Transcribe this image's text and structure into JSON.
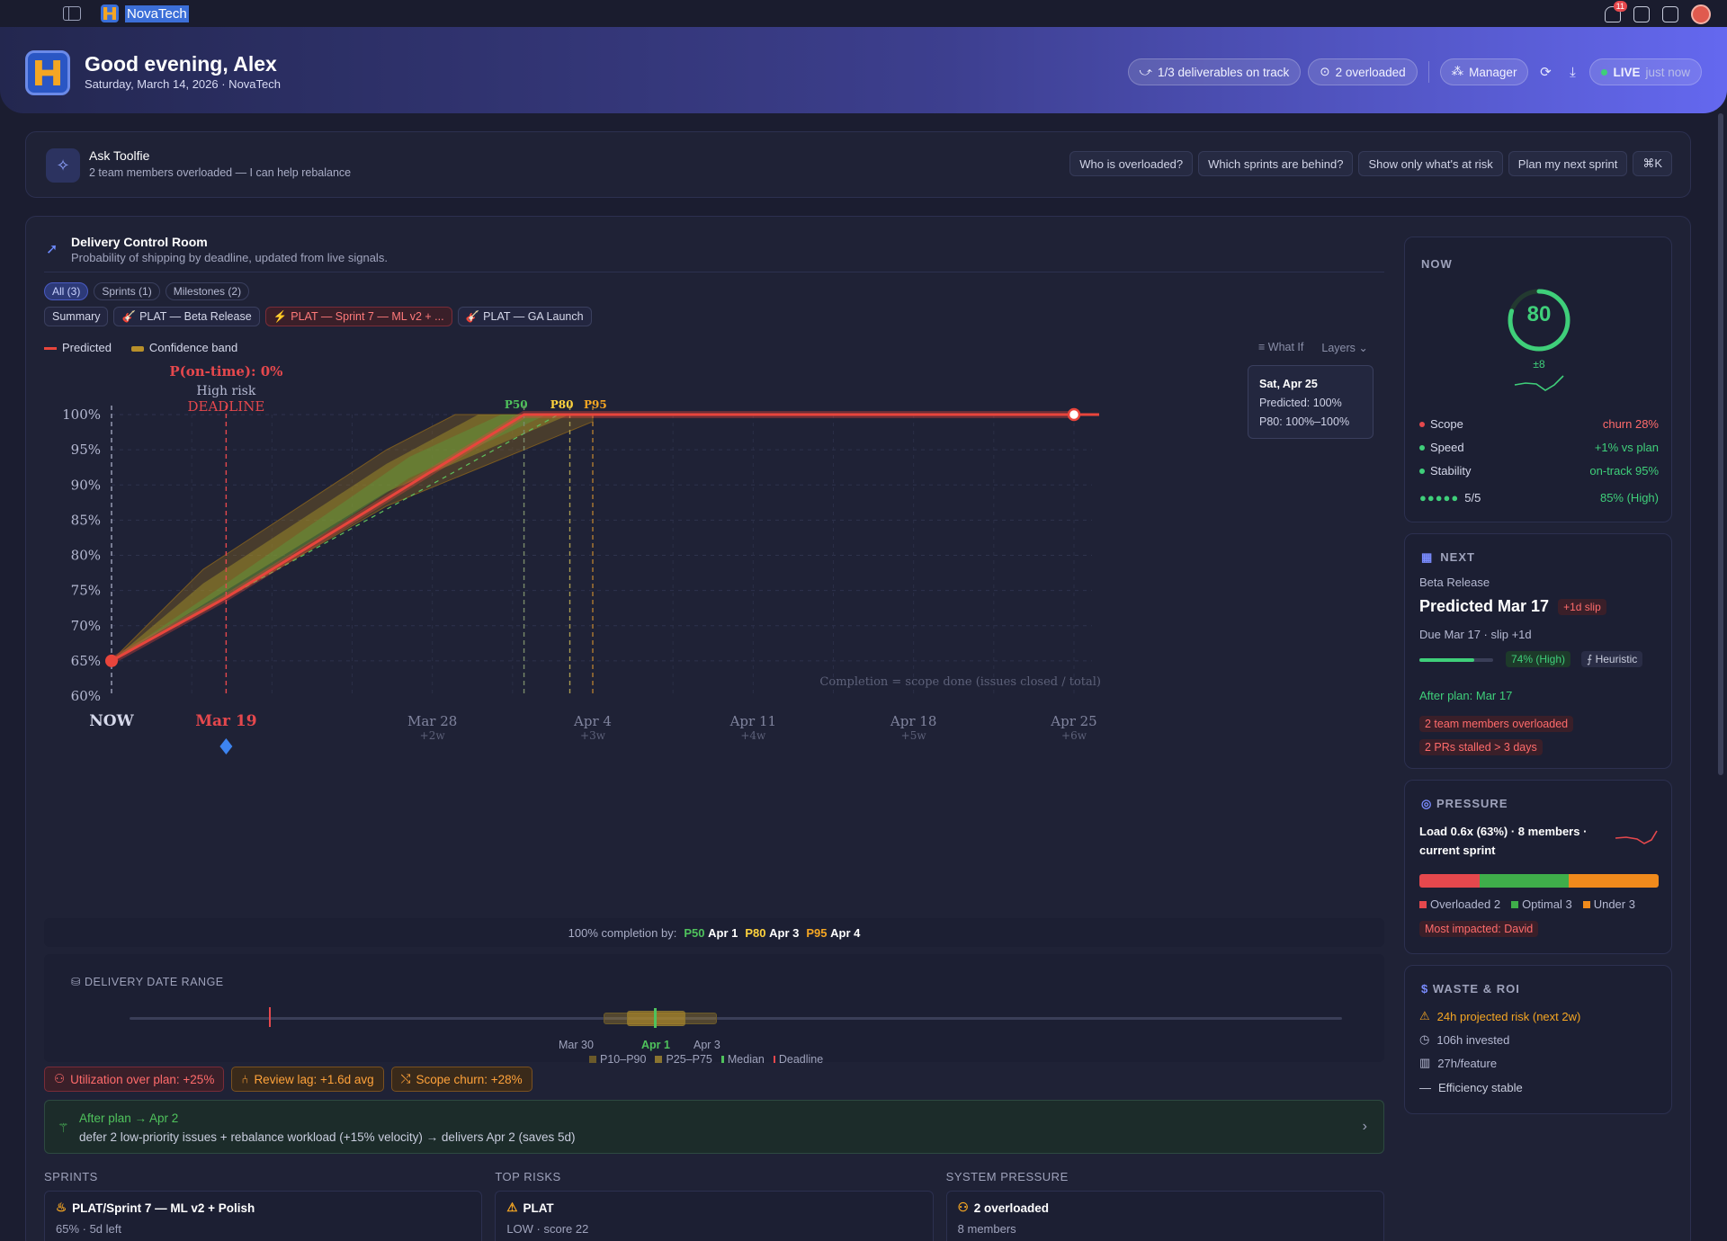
{
  "topbar": {
    "app_title": "NovaTech",
    "notif_count": "11"
  },
  "hero": {
    "greeting": "Good evening, Alex",
    "date_line": "Saturday, March 14, 2026 · NovaTech",
    "on_track": "1/3 deliverables on track",
    "overloaded": "2 overloaded",
    "role": "Manager",
    "live": "LIVE",
    "live_time": "just now"
  },
  "ask": {
    "title": "Ask Toolfie",
    "subtitle": "2 team members overloaded — I can help rebalance",
    "chips": [
      "Who is overloaded?",
      "Which sprints are behind?",
      "Show only what's at risk",
      "Plan my next sprint"
    ],
    "shortcut": "⌘K"
  },
  "dcr": {
    "title": "Delivery Control Room",
    "subtitle": "Probability of shipping by deadline, updated from live signals.",
    "tabs": [
      "All (3)",
      "Sprints (1)",
      "Milestones (2)"
    ],
    "filters": [
      "Summary",
      "PLAT — Beta Release",
      "PLAT — Sprint 7 — ML v2 + ...",
      "PLAT — GA Launch"
    ],
    "legend_predicted": "Predicted",
    "legend_band": "Confidence band",
    "what_if": "What If",
    "layers": "Layers"
  },
  "chart_data": {
    "type": "line",
    "y_ticks": [
      "100%",
      "95%",
      "90%",
      "85%",
      "80%",
      "75%",
      "70%",
      "65%",
      "60%"
    ],
    "ylim": [
      60,
      100
    ],
    "x_ticks": [
      {
        "label": "NOW",
        "sub": ""
      },
      {
        "label": "Mar 19",
        "sub": ""
      },
      {
        "label": "Mar 28",
        "sub": "+2w"
      },
      {
        "label": "Apr 4",
        "sub": "+3w"
      },
      {
        "label": "Apr 11",
        "sub": "+4w"
      },
      {
        "label": "Apr 18",
        "sub": "+5w"
      },
      {
        "label": "Apr 25",
        "sub": "+6w"
      }
    ],
    "series": [
      {
        "name": "Predicted",
        "x": [
          "Mar 14",
          "Mar 19",
          "Apr 1",
          "Apr 25"
        ],
        "y": [
          65,
          74,
          100,
          100
        ]
      }
    ],
    "deadline_label": "DEADLINE",
    "deadline_risk": "High risk",
    "p_ontime": "P(on-time): 0%",
    "markers": [
      "P50",
      "P80",
      "P95"
    ],
    "footnote": "Completion = scope done (issues closed / total)",
    "tooltip": {
      "date": "Sat, Apr 25",
      "predicted": "Predicted: 100%",
      "p80": "P80: 100%–100%"
    }
  },
  "completion": {
    "label": "100% completion by:",
    "p50": "P50",
    "p50_date": "Apr 1",
    "p80": "P80",
    "p80_date": "Apr 3",
    "p95": "P95",
    "p95_date": "Apr 4"
  },
  "ddr": {
    "title": "DELIVERY DATE RANGE",
    "labels": [
      "Mar 30",
      "Apr 1",
      "Apr 3"
    ],
    "legend": [
      "P10–P90",
      "P25–P75",
      "Median",
      "Deadline"
    ]
  },
  "risks": [
    "Utilization over plan: +25%",
    "Review lag: +1.6d avg",
    "Scope churn: +28%"
  ],
  "after_plan": {
    "title": "After plan → Apr 2",
    "detail": "defer 2 low-priority issues + rebalance workload (+15% velocity) → delivers Apr 2 (saves 5d)"
  },
  "bottom": {
    "sprints_title": "SPRINTS",
    "sprint_name": "PLAT/Sprint 7 — ML v2 + Polish",
    "sprint_meta": "65% · 5d left",
    "risks_title": "TOP RISKS",
    "risk_name": "PLAT",
    "risk_meta": "LOW · score 22",
    "pressure_title": "SYSTEM PRESSURE",
    "pressure_name": "2 overloaded",
    "pressure_meta": "8 members"
  },
  "now": {
    "title": "NOW",
    "score": "80",
    "score_pm": "±8",
    "scope": "Scope",
    "scope_val": "churn 28%",
    "speed": "Speed",
    "speed_val": "+1% vs plan",
    "stability": "Stability",
    "stability_val": "on-track 95%",
    "dots": "5/5",
    "confidence": "85% (High)"
  },
  "next": {
    "title": "NEXT",
    "label": "Beta Release",
    "predicted": "Predicted Mar 17",
    "slip": "+1d slip",
    "due": "Due Mar 17 · slip +1d",
    "confidence": "74% (High)",
    "confidence_value": 0.74,
    "heuristic": "Heuristic",
    "after": "After plan: Mar 17",
    "warn1": "2 team members overloaded",
    "warn2": "2 PRs stalled > 3 days"
  },
  "pressure": {
    "title": "PRESSURE",
    "load": "Load 0.6x (63%) · 8 members · current sprint",
    "overloaded": "Overloaded 2",
    "optimal": "Optimal 3",
    "under": "Under 3",
    "most_impacted": "Most impacted: David"
  },
  "waste": {
    "title": "WASTE & ROI",
    "risk": "24h projected risk (next 2w)",
    "invested": "106h invested",
    "per_feature": "27h/feature",
    "efficiency": "Efficiency stable"
  },
  "colors": {
    "accent": "#6468ef",
    "danger": "#e5484d",
    "success": "#3fcf7a",
    "warning": "#f5a623"
  }
}
